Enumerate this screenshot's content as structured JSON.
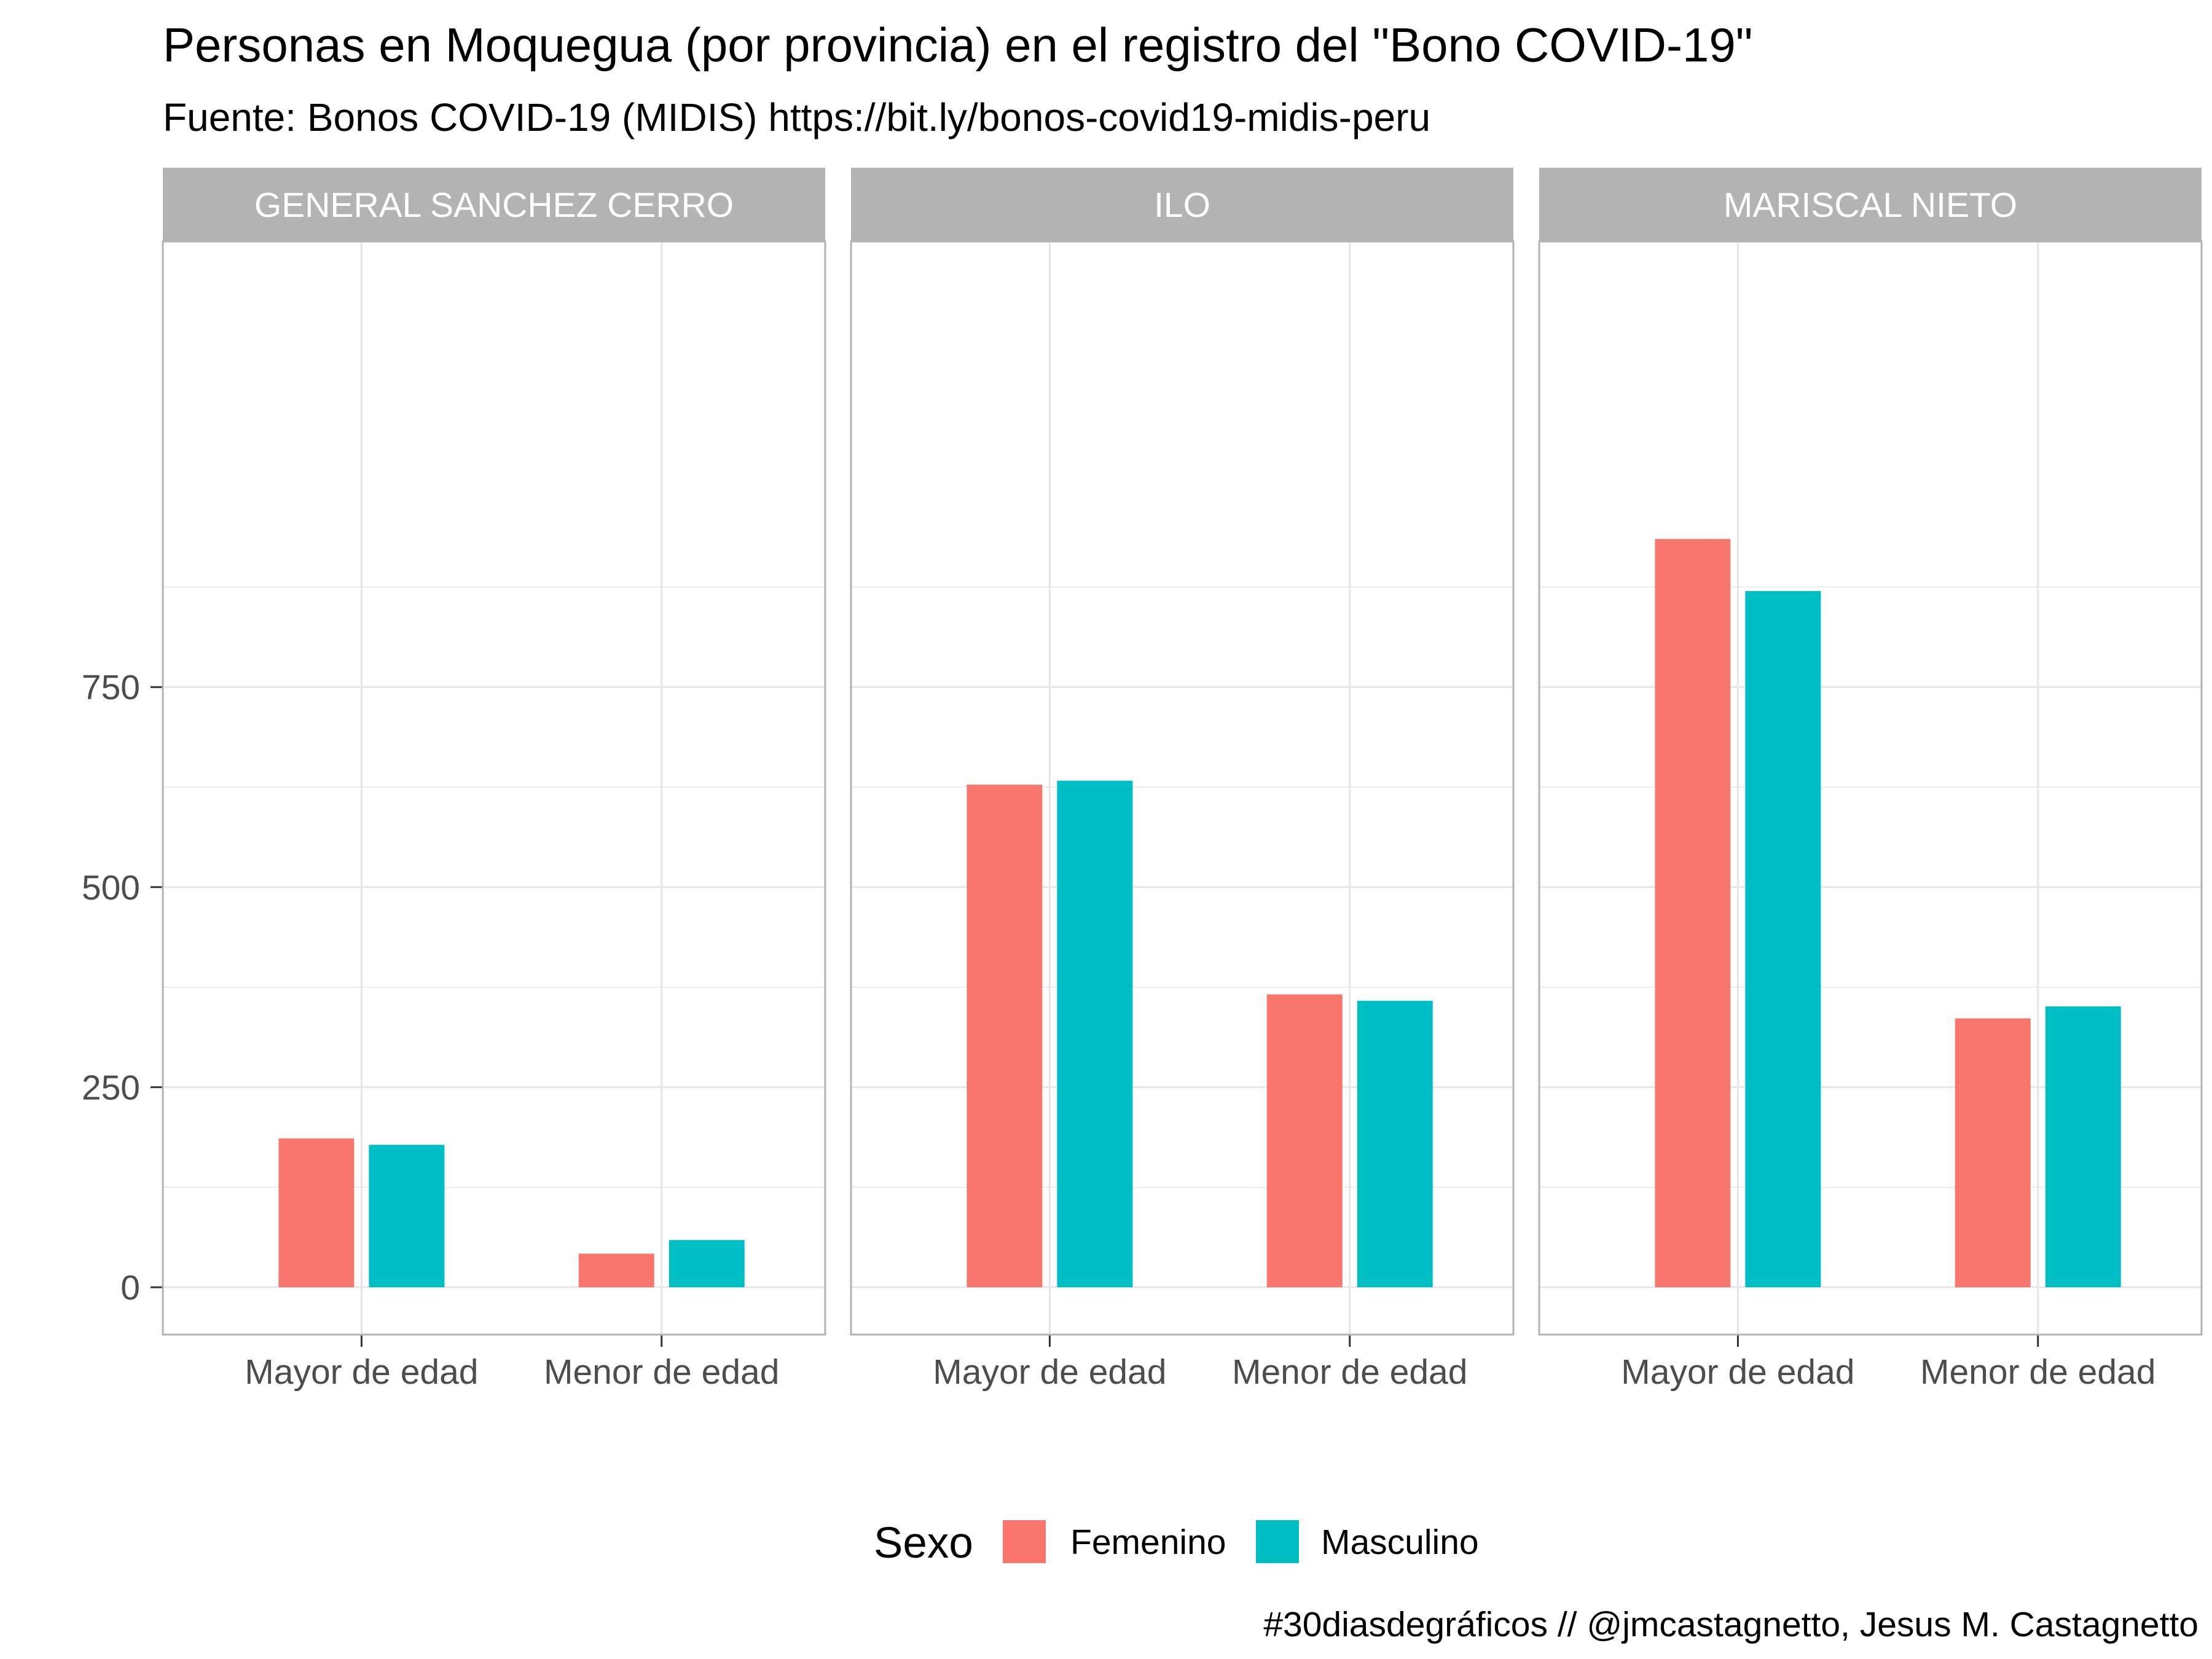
{
  "chart_data": {
    "type": "bar",
    "title": "Personas en Moquegua (por provincia) en el registro del \"Bono COVID-19\"",
    "subtitle": "Fuente: Bonos COVID-19 (MIDIS) https://bit.ly/bonos-covid19-midis-peru",
    "caption": "#30diasdegráficos // @jmcastagnetto, Jesus M. Castagnetto",
    "categories": [
      "Mayor de edad",
      "Menor de edad"
    ],
    "y_ticks": [
      0,
      250,
      500,
      750
    ],
    "ylim": [
      -45,
      982
    ],
    "grid": true,
    "legend": {
      "title": "Sexo",
      "position": "bottom",
      "entries": [
        "Femenino",
        "Masculino"
      ]
    },
    "colors": {
      "Femenino": "#F8766D",
      "Masculino": "#00BFC4",
      "strip": "#B3B3B3",
      "grid": "#E6E6E6",
      "panel_border": "#B3B3B3"
    },
    "panels": [
      {
        "name": "GENERAL SANCHEZ CERRO",
        "series": [
          {
            "name": "Femenino",
            "values": [
              186,
              42
            ]
          },
          {
            "name": "Masculino",
            "values": [
              178,
              59
            ]
          }
        ]
      },
      {
        "name": "ILO",
        "series": [
          {
            "name": "Femenino",
            "values": [
              628,
              366
            ]
          },
          {
            "name": "Masculino",
            "values": [
              633,
              358
            ]
          }
        ]
      },
      {
        "name": "MARISCAL NIETO",
        "series": [
          {
            "name": "Femenino",
            "values": [
              935,
              336
            ]
          },
          {
            "name": "Masculino",
            "values": [
              870,
              351
            ]
          }
        ]
      }
    ]
  }
}
